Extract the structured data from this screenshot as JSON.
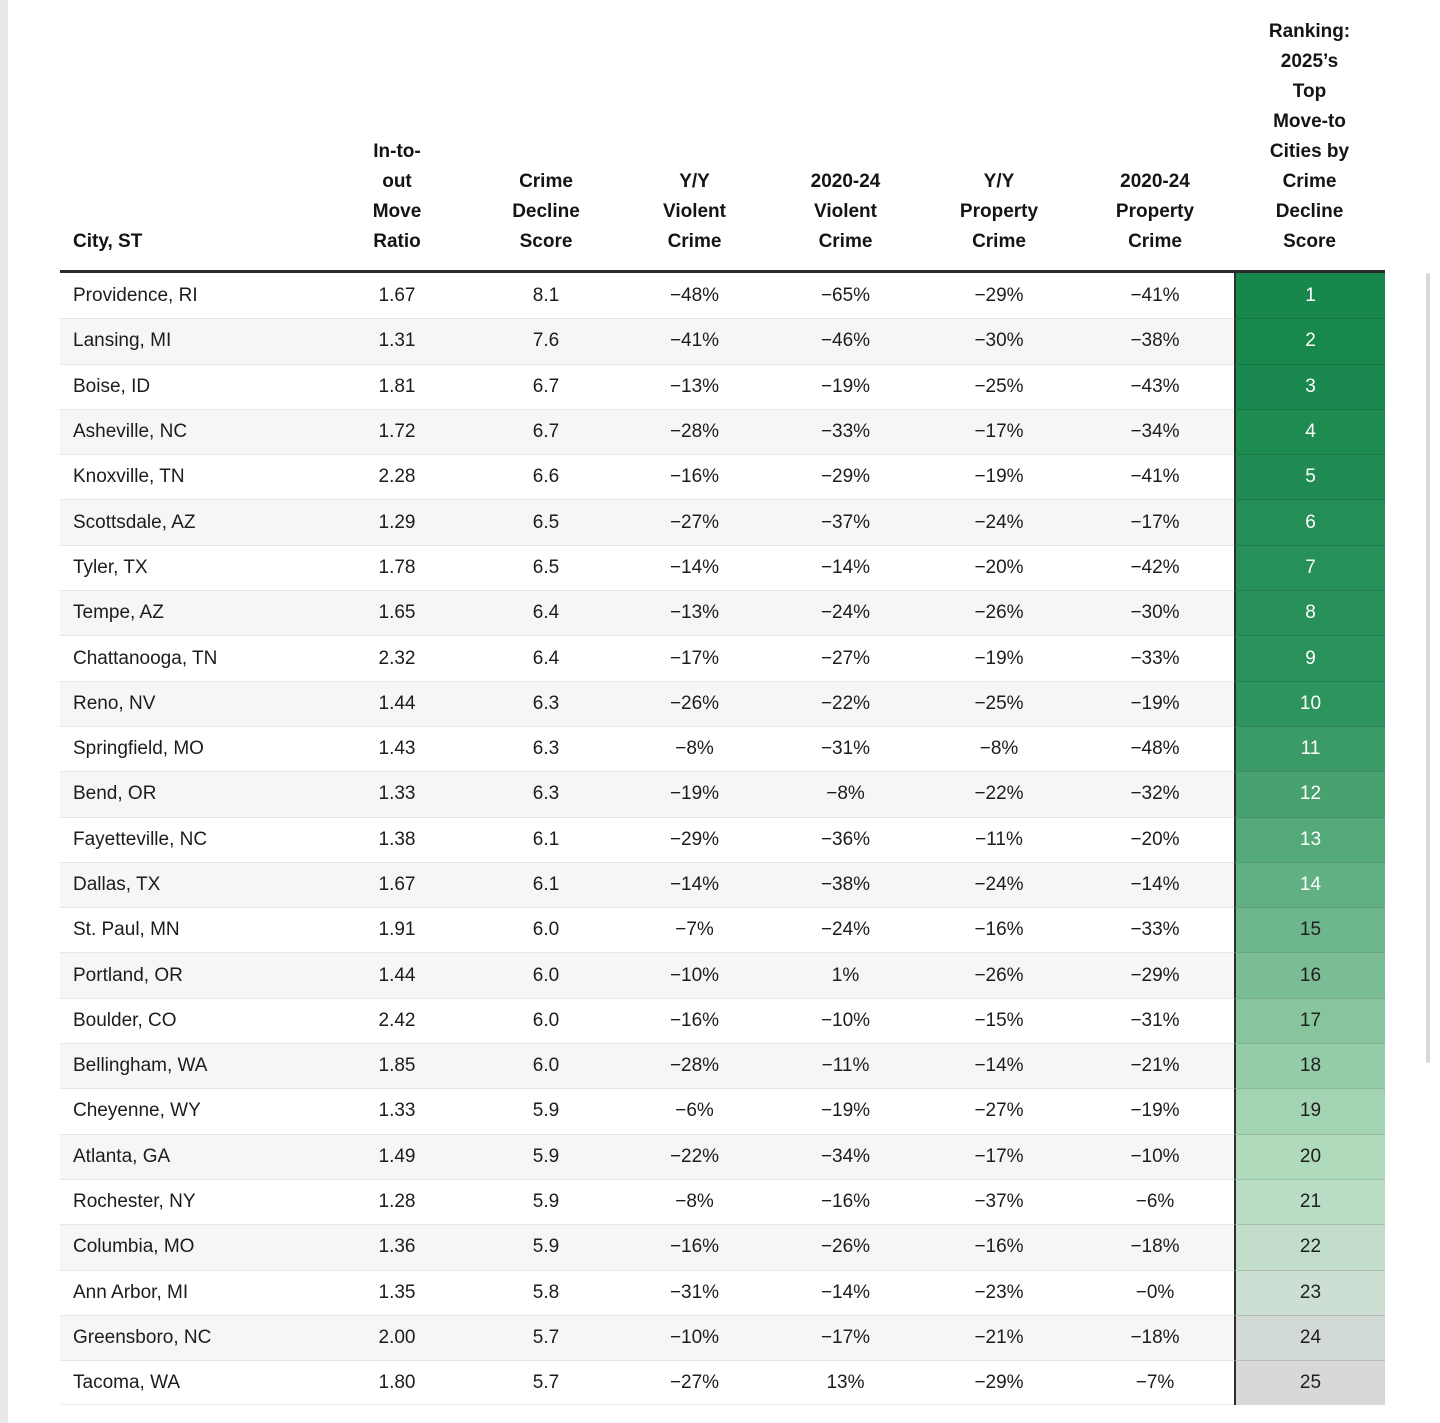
{
  "page": {
    "background": "#ffffff",
    "left_gutter_color": "#e9e9e9",
    "scrollbar_color": "#d9d9d9"
  },
  "chart_data": {
    "type": "table",
    "title": "Ranking: 2025's Top Move-to Cities by Crime Decline Score",
    "layout": {
      "striped": true,
      "stripe_color": "#f6f6f6",
      "header_underline_color": "#2b2b2b",
      "row_separator_color": "#e6e6e6",
      "rank_divider_color": "#2e2e2e",
      "rank_color_scale": [
        "#17874B",
        "#D6D9D5"
      ],
      "rank_text_white_through": 14
    },
    "columns": [
      {
        "key": "city",
        "label": "City, ST",
        "align": "left"
      },
      {
        "key": "move_ratio",
        "label": "In-to-\nout\nMove\nRatio",
        "align": "center"
      },
      {
        "key": "crime_decline_score",
        "label": "Crime\nDecline\nScore",
        "align": "center"
      },
      {
        "key": "yy_violent_crime",
        "label": "Y/Y\nViolent\nCrime",
        "align": "center"
      },
      {
        "key": "violent_crime_2020_24",
        "label": "2020-24\nViolent\nCrime",
        "align": "center"
      },
      {
        "key": "yy_property_crime",
        "label": "Y/Y\nProperty\nCrime",
        "align": "center"
      },
      {
        "key": "property_crime_2020_24",
        "label": "2020-24\nProperty\nCrime",
        "align": "center"
      },
      {
        "key": "ranking",
        "label": "Ranking:\n2025’s\nTop\nMove-to\nCities by\nCrime\nDecline\nScore",
        "align": "center"
      }
    ],
    "rows": [
      {
        "city": "Providence, RI",
        "move_ratio": "1.67",
        "crime_decline_score": "8.1",
        "yy_violent_crime": "−48%",
        "violent_crime_2020_24": "−65%",
        "yy_property_crime": "−29%",
        "property_crime_2020_24": "−41%",
        "ranking": "1",
        "rank_bg": "#17874B",
        "rank_fg": "#FFFFFF"
      },
      {
        "city": "Lansing, MI",
        "move_ratio": "1.31",
        "crime_decline_score": "7.6",
        "yy_violent_crime": "−41%",
        "violent_crime_2020_24": "−46%",
        "yy_property_crime": "−30%",
        "property_crime_2020_24": "−38%",
        "ranking": "2",
        "rank_bg": "#19884D",
        "rank_fg": "#FFFFFF"
      },
      {
        "city": "Boise, ID",
        "move_ratio": "1.81",
        "crime_decline_score": "6.7",
        "yy_violent_crime": "−13%",
        "violent_crime_2020_24": "−19%",
        "yy_property_crime": "−25%",
        "property_crime_2020_24": "−43%",
        "ranking": "3",
        "rank_bg": "#1B894F",
        "rank_fg": "#FFFFFF"
      },
      {
        "city": "Asheville, NC",
        "move_ratio": "1.72",
        "crime_decline_score": "6.7",
        "yy_violent_crime": "−28%",
        "violent_crime_2020_24": "−33%",
        "yy_property_crime": "−17%",
        "property_crime_2020_24": "−34%",
        "ranking": "4",
        "rank_bg": "#1E8B51",
        "rank_fg": "#FFFFFF"
      },
      {
        "city": "Knoxville, TN",
        "move_ratio": "2.28",
        "crime_decline_score": "6.6",
        "yy_violent_crime": "−16%",
        "violent_crime_2020_24": "−29%",
        "yy_property_crime": "−19%",
        "property_crime_2020_24": "−41%",
        "ranking": "5",
        "rank_bg": "#208C53",
        "rank_fg": "#FFFFFF"
      },
      {
        "city": "Scottsdale, AZ",
        "move_ratio": "1.29",
        "crime_decline_score": "6.5",
        "yy_violent_crime": "−27%",
        "violent_crime_2020_24": "−37%",
        "yy_property_crime": "−24%",
        "property_crime_2020_24": "−17%",
        "ranking": "6",
        "rank_bg": "#238E55",
        "rank_fg": "#FFFFFF"
      },
      {
        "city": "Tyler, TX",
        "move_ratio": "1.78",
        "crime_decline_score": "6.5",
        "yy_violent_crime": "−14%",
        "violent_crime_2020_24": "−14%",
        "yy_property_crime": "−20%",
        "property_crime_2020_24": "−42%",
        "ranking": "7",
        "rank_bg": "#259057",
        "rank_fg": "#FFFFFF"
      },
      {
        "city": "Tempe, AZ",
        "move_ratio": "1.65",
        "crime_decline_score": "6.4",
        "yy_violent_crime": "−13%",
        "violent_crime_2020_24": "−24%",
        "yy_property_crime": "−26%",
        "property_crime_2020_24": "−30%",
        "ranking": "8",
        "rank_bg": "#289159",
        "rank_fg": "#FFFFFF"
      },
      {
        "city": "Chattanooga, TN",
        "move_ratio": "2.32",
        "crime_decline_score": "6.4",
        "yy_violent_crime": "−17%",
        "violent_crime_2020_24": "−27%",
        "yy_property_crime": "−19%",
        "property_crime_2020_24": "−33%",
        "ranking": "9",
        "rank_bg": "#2A935B",
        "rank_fg": "#FFFFFF"
      },
      {
        "city": "Reno, NV",
        "move_ratio": "1.44",
        "crime_decline_score": "6.3",
        "yy_violent_crime": "−26%",
        "violent_crime_2020_24": "−22%",
        "yy_property_crime": "−25%",
        "property_crime_2020_24": "−19%",
        "ranking": "10",
        "rank_bg": "#2D945D",
        "rank_fg": "#FFFFFF"
      },
      {
        "city": "Springfield, MO",
        "move_ratio": "1.43",
        "crime_decline_score": "6.3",
        "yy_violent_crime": "−8%",
        "violent_crime_2020_24": "−31%",
        "yy_property_crime": "−8%",
        "property_crime_2020_24": "−48%",
        "ranking": "11",
        "rank_bg": "#3A9B66",
        "rank_fg": "#FFFFFF"
      },
      {
        "city": "Bend, OR",
        "move_ratio": "1.33",
        "crime_decline_score": "6.3",
        "yy_violent_crime": "−19%",
        "violent_crime_2020_24": "−8%",
        "yy_property_crime": "−22%",
        "property_crime_2020_24": "−32%",
        "ranking": "12",
        "rank_bg": "#47A270",
        "rank_fg": "#FFFFFF"
      },
      {
        "city": "Fayetteville, NC",
        "move_ratio": "1.38",
        "crime_decline_score": "6.1",
        "yy_violent_crime": "−29%",
        "violent_crime_2020_24": "−36%",
        "yy_property_crime": "−11%",
        "property_crime_2020_24": "−20%",
        "ranking": "13",
        "rank_bg": "#54A979",
        "rank_fg": "#FFFFFF"
      },
      {
        "city": "Dallas, TX",
        "move_ratio": "1.67",
        "crime_decline_score": "6.1",
        "yy_violent_crime": "−14%",
        "violent_crime_2020_24": "−38%",
        "yy_property_crime": "−24%",
        "property_crime_2020_24": "−14%",
        "ranking": "14",
        "rank_bg": "#61B083",
        "rank_fg": "#FFFFFF"
      },
      {
        "city": "St. Paul, MN",
        "move_ratio": "1.91",
        "crime_decline_score": "6.0",
        "yy_violent_crime": "−7%",
        "violent_crime_2020_24": "−24%",
        "yy_property_crime": "−16%",
        "property_crime_2020_24": "−33%",
        "ranking": "15",
        "rank_bg": "#6EB78C",
        "rank_fg": "#1F1F1F"
      },
      {
        "city": "Portland, OR",
        "move_ratio": "1.44",
        "crime_decline_score": "6.0",
        "yy_violent_crime": "−10%",
        "violent_crime_2020_24": "1%",
        "yy_property_crime": "−26%",
        "property_crime_2020_24": "−29%",
        "ranking": "16",
        "rank_bg": "#7BBE96",
        "rank_fg": "#1F1F1F"
      },
      {
        "city": "Boulder, CO",
        "move_ratio": "2.42",
        "crime_decline_score": "6.0",
        "yy_violent_crime": "−16%",
        "violent_crime_2020_24": "−10%",
        "yy_property_crime": "−15%",
        "property_crime_2020_24": "−31%",
        "ranking": "17",
        "rank_bg": "#88C59F",
        "rank_fg": "#1F1F1F"
      },
      {
        "city": "Bellingham, WA",
        "move_ratio": "1.85",
        "crime_decline_score": "6.0",
        "yy_violent_crime": "−28%",
        "violent_crime_2020_24": "−11%",
        "yy_property_crime": "−14%",
        "property_crime_2020_24": "−21%",
        "ranking": "18",
        "rank_bg": "#95CCA9",
        "rank_fg": "#1F1F1F"
      },
      {
        "city": "Cheyenne, WY",
        "move_ratio": "1.33",
        "crime_decline_score": "5.9",
        "yy_violent_crime": "−6%",
        "violent_crime_2020_24": "−19%",
        "yy_property_crime": "−27%",
        "property_crime_2020_24": "−19%",
        "ranking": "19",
        "rank_bg": "#A2D3B2",
        "rank_fg": "#1F1F1F"
      },
      {
        "city": "Atlanta, GA",
        "move_ratio": "1.49",
        "crime_decline_score": "5.9",
        "yy_violent_crime": "−22%",
        "violent_crime_2020_24": "−34%",
        "yy_property_crime": "−17%",
        "property_crime_2020_24": "−10%",
        "ranking": "20",
        "rank_bg": "#AFDABC",
        "rank_fg": "#1F1F1F"
      },
      {
        "city": "Rochester, NY",
        "move_ratio": "1.28",
        "crime_decline_score": "5.9",
        "yy_violent_crime": "−8%",
        "violent_crime_2020_24": "−16%",
        "yy_property_crime": "−37%",
        "property_crime_2020_24": "−6%",
        "ranking": "21",
        "rank_bg": "#B9DCC5",
        "rank_fg": "#1F1F1F"
      },
      {
        "city": "Columbia, MO",
        "move_ratio": "1.36",
        "crime_decline_score": "5.9",
        "yy_violent_crime": "−16%",
        "violent_crime_2020_24": "−26%",
        "yy_property_crime": "−16%",
        "property_crime_2020_24": "−18%",
        "ranking": "22",
        "rank_bg": "#C2DECB",
        "rank_fg": "#1F1F1F"
      },
      {
        "city": "Ann Arbor, MI",
        "move_ratio": "1.35",
        "crime_decline_score": "5.8",
        "yy_violent_crime": "−31%",
        "violent_crime_2020_24": "−14%",
        "yy_property_crime": "−23%",
        "property_crime_2020_24": "−0%",
        "ranking": "23",
        "rank_bg": "#CCDFD2",
        "rank_fg": "#1F1F1F"
      },
      {
        "city": "Greensboro, NC",
        "move_ratio": "2.00",
        "crime_decline_score": "5.7",
        "yy_violent_crime": "−10%",
        "violent_crime_2020_24": "−17%",
        "yy_property_crime": "−21%",
        "property_crime_2020_24": "−18%",
        "ranking": "24",
        "rank_bg": "#D1DAD4",
        "rank_fg": "#1F1F1F"
      },
      {
        "city": "Tacoma, WA",
        "move_ratio": "1.80",
        "crime_decline_score": "5.7",
        "yy_violent_crime": "−27%",
        "violent_crime_2020_24": "13%",
        "yy_property_crime": "−29%",
        "property_crime_2020_24": "−7%",
        "ranking": "25",
        "rank_bg": "#D6D9D5",
        "rank_fg": "#1F1F1F"
      }
    ]
  }
}
